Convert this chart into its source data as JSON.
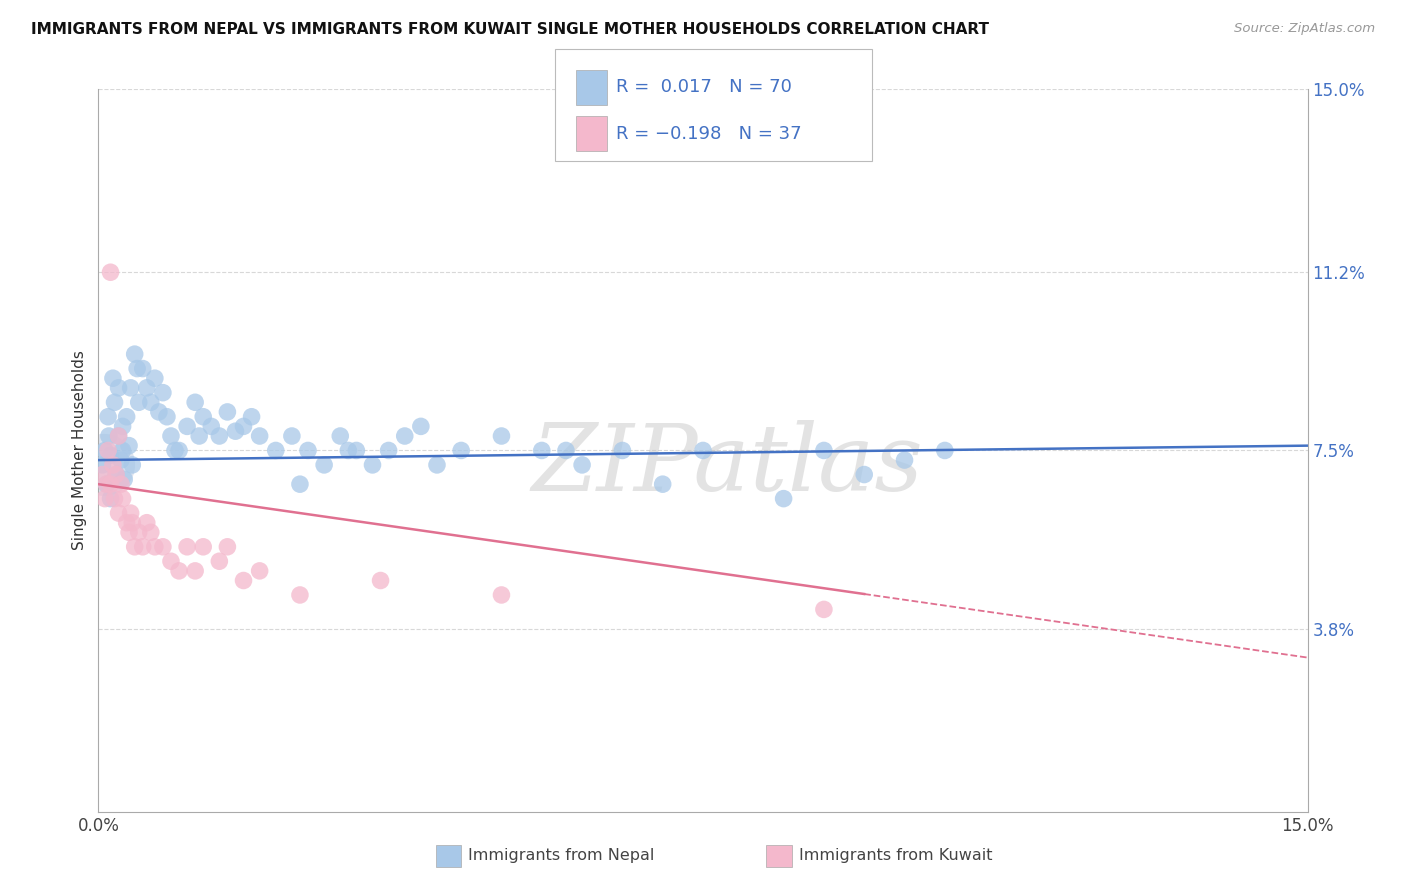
{
  "title": "IMMIGRANTS FROM NEPAL VS IMMIGRANTS FROM KUWAIT SINGLE MOTHER HOUSEHOLDS CORRELATION CHART",
  "source": "Source: ZipAtlas.com",
  "ylabel": "Single Mother Households",
  "xlim": [
    0,
    15
  ],
  "ylim": [
    0,
    15
  ],
  "y_ticks_right": [
    3.8,
    7.5,
    11.2,
    15.0
  ],
  "y_tick_labels_right": [
    "3.8%",
    "7.5%",
    "11.2%",
    "15.0%"
  ],
  "nepal_R": 0.017,
  "nepal_N": 70,
  "kuwait_R": -0.198,
  "kuwait_N": 37,
  "nepal_color": "#a8c8e8",
  "kuwait_color": "#f4b8cc",
  "nepal_line_color": "#4472c4",
  "kuwait_line_color": "#e07090",
  "background_color": "#ffffff",
  "grid_color": "#d8d8d8",
  "watermark": "ZIPatlas",
  "nepal_scatter_x": [
    0.05,
    0.08,
    0.1,
    0.12,
    0.13,
    0.15,
    0.15,
    0.18,
    0.2,
    0.22,
    0.25,
    0.25,
    0.28,
    0.3,
    0.3,
    0.32,
    0.35,
    0.38,
    0.4,
    0.42,
    0.45,
    0.5,
    0.55,
    0.6,
    0.65,
    0.7,
    0.75,
    0.8,
    0.85,
    0.9,
    0.95,
    1.0,
    1.1,
    1.2,
    1.3,
    1.4,
    1.5,
    1.6,
    1.7,
    1.8,
    1.9,
    2.0,
    2.2,
    2.4,
    2.6,
    2.8,
    3.0,
    3.2,
    3.4,
    3.6,
    3.8,
    4.0,
    4.5,
    5.0,
    5.5,
    6.0,
    6.5,
    7.0,
    7.5,
    8.5,
    9.0,
    9.5,
    10.0,
    10.5,
    4.2,
    5.8,
    2.5,
    3.1,
    1.25,
    0.48
  ],
  "nepal_scatter_y": [
    7.2,
    7.5,
    6.8,
    8.2,
    7.8,
    7.4,
    6.5,
    9.0,
    8.5,
    7.0,
    7.8,
    8.8,
    7.3,
    8.0,
    7.5,
    6.9,
    8.2,
    7.6,
    8.8,
    7.2,
    9.5,
    8.5,
    9.2,
    8.8,
    8.5,
    9.0,
    8.3,
    8.7,
    8.2,
    7.8,
    7.5,
    7.5,
    8.0,
    8.5,
    8.2,
    8.0,
    7.8,
    8.3,
    7.9,
    8.0,
    8.2,
    7.8,
    7.5,
    7.8,
    7.5,
    7.2,
    7.8,
    7.5,
    7.2,
    7.5,
    7.8,
    8.0,
    7.5,
    7.8,
    7.5,
    7.2,
    7.5,
    6.8,
    7.5,
    6.5,
    7.5,
    7.0,
    7.3,
    7.5,
    7.2,
    7.5,
    6.8,
    7.5,
    7.8,
    9.2
  ],
  "kuwait_scatter_x": [
    0.05,
    0.08,
    0.1,
    0.12,
    0.15,
    0.18,
    0.2,
    0.22,
    0.25,
    0.28,
    0.3,
    0.35,
    0.38,
    0.4,
    0.45,
    0.5,
    0.55,
    0.6,
    0.65,
    0.7,
    0.8,
    0.9,
    1.0,
    1.1,
    1.2,
    1.3,
    1.5,
    1.8,
    2.0,
    2.5,
    0.42,
    0.15,
    0.25,
    9.0,
    5.0,
    3.5,
    1.6
  ],
  "kuwait_scatter_y": [
    7.0,
    6.5,
    6.8,
    7.5,
    6.8,
    7.2,
    6.5,
    7.0,
    6.2,
    6.8,
    6.5,
    6.0,
    5.8,
    6.2,
    5.5,
    5.8,
    5.5,
    6.0,
    5.8,
    5.5,
    5.5,
    5.2,
    5.0,
    5.5,
    5.0,
    5.5,
    5.2,
    4.8,
    5.0,
    4.5,
    6.0,
    11.2,
    7.8,
    4.2,
    4.5,
    4.8,
    5.5
  ],
  "nepal_line_x0": 0,
  "nepal_line_x1": 15,
  "nepal_line_y0": 7.3,
  "nepal_line_y1": 7.6,
  "kuwait_line_x0": 0,
  "kuwait_line_x1": 15,
  "kuwait_line_y0": 6.8,
  "kuwait_line_y1": 3.2,
  "kuwait_solid_end_x": 9.5
}
